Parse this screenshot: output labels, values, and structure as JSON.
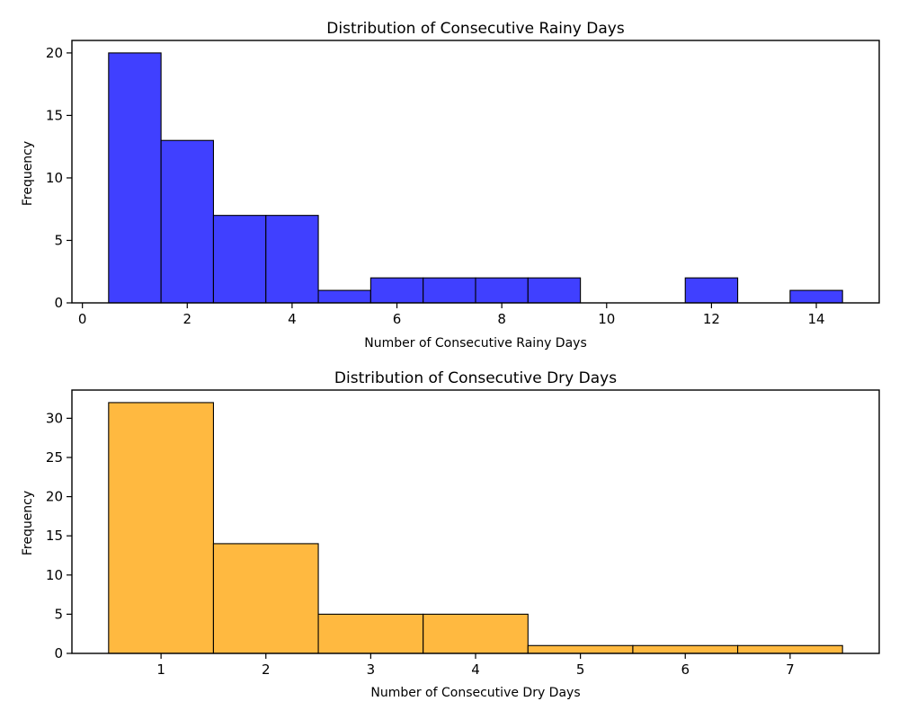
{
  "chart_data": [
    {
      "type": "bar",
      "title": "Distribution of Consecutive Rainy Days",
      "xlabel": "Number of Consecutive Rainy Days",
      "ylabel": "Frequency",
      "xlim": [
        -0.2,
        15.2
      ],
      "ylim": [
        0,
        21
      ],
      "xticks": [
        0,
        2,
        4,
        6,
        8,
        10,
        12,
        14
      ],
      "yticks": [
        0,
        5,
        10,
        15,
        20
      ],
      "color": "#4040ff",
      "grid": false,
      "bins": [
        {
          "x": 1,
          "value": 20
        },
        {
          "x": 2,
          "value": 13
        },
        {
          "x": 3,
          "value": 7
        },
        {
          "x": 4,
          "value": 7
        },
        {
          "x": 5,
          "value": 1
        },
        {
          "x": 6,
          "value": 2
        },
        {
          "x": 7,
          "value": 2
        },
        {
          "x": 8,
          "value": 2
        },
        {
          "x": 9,
          "value": 2
        },
        {
          "x": 10,
          "value": 0
        },
        {
          "x": 11,
          "value": 0
        },
        {
          "x": 12,
          "value": 2
        },
        {
          "x": 13,
          "value": 0
        },
        {
          "x": 14,
          "value": 1
        }
      ]
    },
    {
      "type": "bar",
      "title": "Distribution of Consecutive Dry Days",
      "xlabel": "Number of Consecutive Dry Days",
      "ylabel": "Frequency",
      "xlim": [
        0.15,
        7.85
      ],
      "ylim": [
        0,
        33.6
      ],
      "xticks": [
        1,
        2,
        3,
        4,
        5,
        6,
        7
      ],
      "yticks": [
        0,
        5,
        10,
        15,
        20,
        25,
        30
      ],
      "color": "#ffb940",
      "grid": false,
      "bins": [
        {
          "x": 1,
          "value": 32
        },
        {
          "x": 2,
          "value": 14
        },
        {
          "x": 3,
          "value": 5
        },
        {
          "x": 4,
          "value": 5
        },
        {
          "x": 5,
          "value": 1
        },
        {
          "x": 6,
          "value": 1
        },
        {
          "x": 7,
          "value": 1
        }
      ]
    }
  ]
}
